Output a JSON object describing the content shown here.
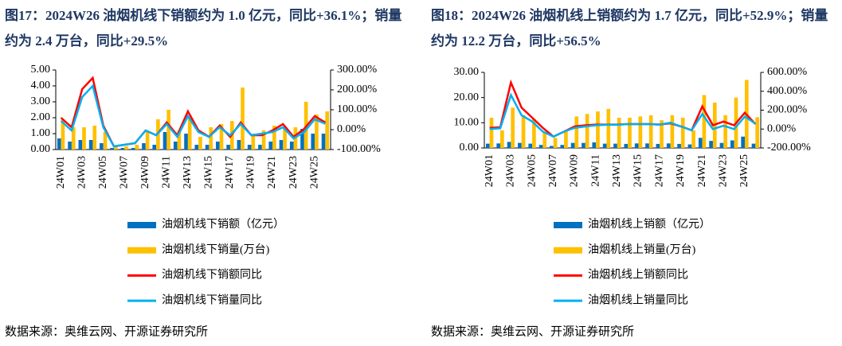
{
  "chart_data": [
    {
      "type": "bar",
      "title": "图17：2024W26 油烟机线下销额约为 1.0 亿元，同比+36.1%；销量约为 2.4 万台，同比+29.5%",
      "source": "数据来源：奥维云网、开源证券研究所",
      "categories": [
        "24W01",
        null,
        "24W03",
        null,
        "24W05",
        null,
        "24W07",
        null,
        "24W09",
        null,
        "24W11",
        null,
        "24W13",
        null,
        "24W15",
        null,
        "24W17",
        null,
        "24W19",
        null,
        "24W21",
        null,
        "24W23",
        null,
        "24W25",
        null
      ],
      "ylim": [
        0,
        5
      ],
      "yticks": [
        {
          "value": 0,
          "label": "0.00"
        },
        {
          "value": 1,
          "label": "1.00"
        },
        {
          "value": 2,
          "label": "2.00"
        },
        {
          "value": 3,
          "label": "3.00"
        },
        {
          "value": 4,
          "label": "4.00"
        },
        {
          "value": 5,
          "label": "5.00"
        }
      ],
      "y2lim": [
        -100,
        300
      ],
      "y2ticks": [
        {
          "value": -100,
          "label": "-100.00%"
        },
        {
          "value": 0,
          "label": "0.00%"
        },
        {
          "value": 100,
          "label": "100.00%"
        },
        {
          "value": 200,
          "label": "200.00%"
        },
        {
          "value": 300,
          "label": "300.00%"
        }
      ],
      "series": [
        {
          "name": "油烟机线下销额（亿元）",
          "type": "bar",
          "color": "#0070c0",
          "values": [
            0.7,
            0.5,
            0.6,
            0.6,
            0.4,
            0.1,
            0.1,
            0.1,
            0.4,
            0.3,
            1.1,
            0.5,
            1.0,
            0.3,
            0.3,
            0.5,
            0.3,
            0.6,
            0.3,
            0.3,
            0.5,
            0.6,
            0.5,
            1.3,
            1.0,
            1.0
          ]
        },
        {
          "name": "油烟机线下销量(万台)",
          "type": "bar",
          "color": "#ffc000",
          "values": [
            1.9,
            1.4,
            1.4,
            1.5,
            1.1,
            0.2,
            0.2,
            0.3,
            1.1,
            1.9,
            2.5,
            1.2,
            2.0,
            0.8,
            1.4,
            1.6,
            1.8,
            3.9,
            1.0,
            1.2,
            1.5,
            1.4,
            1.4,
            3.0,
            2.2,
            2.4
          ]
        },
        {
          "name": "油烟机线下销额同比",
          "type": "line",
          "axis": "y2",
          "color": "#ff0000",
          "values": [
            60,
            12,
            204,
            260,
            20,
            -84,
            -76,
            -68,
            -4,
            -28,
            36,
            -28,
            92,
            -4,
            -36,
            20,
            -36,
            36,
            -28,
            -28,
            -4,
            28,
            -36,
            4,
            68,
            36.1
          ]
        },
        {
          "name": "油烟机线下销量同比",
          "type": "line",
          "axis": "y2",
          "color": "#00b0f0",
          "values": [
            44,
            -4,
            164,
            220,
            12,
            -84,
            -76,
            -68,
            -4,
            -28,
            28,
            -36,
            68,
            -12,
            -36,
            12,
            -28,
            28,
            -28,
            -20,
            -12,
            12,
            -44,
            -12,
            52,
            29.5
          ]
        }
      ]
    },
    {
      "type": "bar",
      "title": "图18：2024W26 油烟机线上销额约为 1.7 亿元，同比+52.9%；销量约为 12.2 万台，同比+56.5%",
      "source": "数据来源：奥维云网、开源证券研究所",
      "categories": [
        "24W01",
        null,
        "24W03",
        null,
        "24W05",
        null,
        "24W07",
        null,
        "24W09",
        null,
        "24W11",
        null,
        "24W13",
        null,
        "24W15",
        null,
        "24W17",
        null,
        "24W19",
        null,
        "24W21",
        null,
        "24W23",
        null,
        "24W25",
        null
      ],
      "ylim": [
        0,
        30
      ],
      "yticks": [
        {
          "value": 0,
          "label": "0.00"
        },
        {
          "value": 10,
          "label": "10.00"
        },
        {
          "value": 20,
          "label": "20.00"
        },
        {
          "value": 30,
          "label": "30.00"
        }
      ],
      "y2lim": [
        -200,
        600
      ],
      "y2ticks": [
        {
          "value": -200,
          "label": "-200.00%"
        },
        {
          "value": 0,
          "label": "0.00%"
        },
        {
          "value": 200,
          "label": "200.00%"
        },
        {
          "value": 400,
          "label": "400.00%"
        },
        {
          "value": 600,
          "label": "600.00%"
        }
      ],
      "series": [
        {
          "name": "油烟机线上销额（亿元）",
          "type": "bar",
          "color": "#0070c0",
          "values": [
            1.7,
            1.8,
            2.4,
            2.0,
            1.7,
            1.2,
            0.8,
            1.2,
            2.0,
            2.0,
            2.2,
            1.7,
            1.7,
            1.6,
            1.8,
            1.8,
            1.6,
            1.8,
            1.6,
            1.4,
            4.0,
            2.8,
            2.0,
            3.0,
            4.5,
            1.7
          ]
        },
        {
          "name": "油烟机线上销量(万台)",
          "type": "bar",
          "color": "#ffc000",
          "values": [
            12,
            7,
            16,
            13,
            11.5,
            6,
            4,
            7,
            12.5,
            13.5,
            14.5,
            15.5,
            12,
            12,
            12.5,
            13,
            11,
            13,
            12,
            7,
            21,
            18,
            13,
            20,
            27,
            12.2
          ]
        },
        {
          "name": "油烟机线上销额同比",
          "type": "line",
          "axis": "y2",
          "color": "#ff0000",
          "values": [
            13,
            19,
            493,
            227,
            120,
            13,
            -80,
            -27,
            27,
            40,
            48,
            48,
            48,
            53,
            53,
            53,
            48,
            61,
            27,
            -13,
            240,
            40,
            80,
            40,
            173,
            52.9
          ]
        },
        {
          "name": "油烟机线上销量同比",
          "type": "line",
          "axis": "y2",
          "color": "#00b0f0",
          "values": [
            0,
            8,
            360,
            147,
            80,
            -27,
            -80,
            -27,
            13,
            27,
            40,
            45,
            45,
            53,
            53,
            53,
            48,
            67,
            27,
            -13,
            160,
            0,
            35,
            0,
            133,
            56.5
          ]
        }
      ]
    }
  ]
}
